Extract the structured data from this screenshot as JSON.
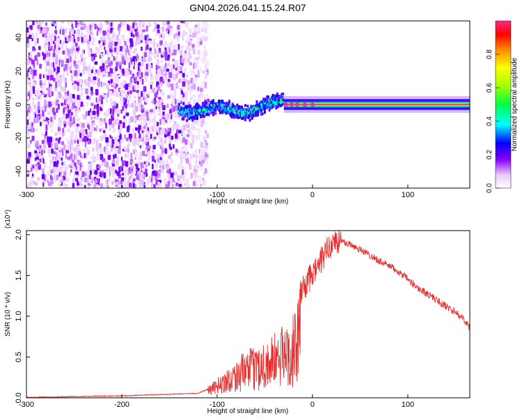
{
  "title": "GN04.2026.041.15.24.R07",
  "chart_data": [
    {
      "type": "heatmap",
      "xlabel": "Height of straight line (km)",
      "ylabel": "Frequency (Hz)",
      "xlim": [
        -300,
        165
      ],
      "ylim": [
        -50,
        50
      ],
      "xticks": [
        -300,
        -200,
        -100,
        0,
        100
      ],
      "yticks": [
        -40,
        -20,
        0,
        20,
        40
      ],
      "grid": false,
      "colorbar": {
        "label": "Normalized spectral amplitude",
        "range": [
          0,
          1
        ],
        "ticks": [
          "0.0",
          "0.2",
          "0.4",
          "0.6",
          "0.8"
        ],
        "colormap": "rainbow (white-violet-blue-cyan-green-yellow-red-pink)"
      },
      "regions": [
        {
          "x_range": [
            -300,
            -120
          ],
          "freq_range": [
            -50,
            50
          ],
          "amplitude": 0.1
        },
        {
          "x_range": [
            -140,
            -30
          ],
          "freq_center": -3,
          "freq_spread": 6,
          "amplitude": 0.4
        },
        {
          "x_range": [
            -30,
            165
          ],
          "freq_center": 0,
          "freq_spread": 1.5,
          "amplitude": 1.0
        }
      ]
    },
    {
      "type": "line",
      "xlabel": "Height of straight line (km)",
      "ylabel": "SNR (10 * v/v)",
      "y_exponent": "(x10⁴)",
      "xlim": [
        -300,
        165
      ],
      "ylim": [
        0,
        2.05
      ],
      "xticks": [
        -300,
        -200,
        -100,
        0,
        100
      ],
      "yticks": [
        "0.0",
        "0.5",
        "1.0",
        "1.5",
        "2.0"
      ],
      "color": "#e83030",
      "grid": false,
      "series": [
        {
          "x": [
            -300,
            -200,
            -120,
            -110,
            -100,
            -90,
            -80,
            -70,
            -60,
            -50,
            -40,
            -30,
            -20,
            -14,
            -13,
            0,
            10,
            20,
            30,
            40,
            50,
            60,
            70,
            80,
            90,
            100,
            110,
            120,
            130,
            140,
            150,
            160,
            165
          ],
          "y": [
            0.0,
            0.02,
            0.05,
            0.1,
            0.2,
            0.3,
            0.4,
            0.5,
            0.55,
            0.62,
            0.7,
            0.8,
            0.9,
            1.1,
            1.3,
            1.5,
            1.7,
            1.9,
            1.92,
            1.88,
            1.82,
            1.75,
            1.68,
            1.62,
            1.55,
            1.45,
            1.35,
            1.28,
            1.2,
            1.12,
            1.05,
            0.95,
            0.85
          ]
        }
      ]
    }
  ]
}
